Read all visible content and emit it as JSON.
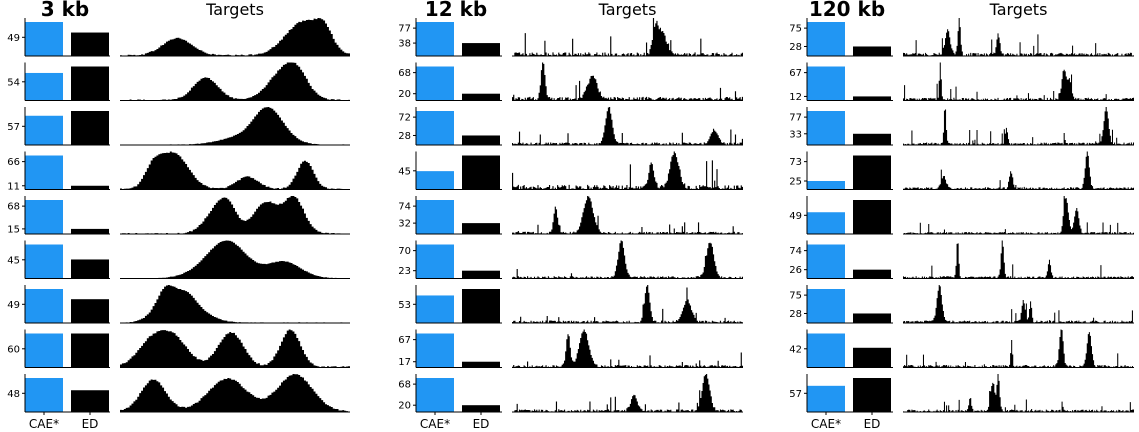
{
  "figure": {
    "colors": {
      "cae": "#2196f3",
      "ed": "#000000",
      "target": "#000000",
      "axis": "#000000"
    },
    "bar_labels": [
      "CAE*",
      "ED"
    ],
    "targets_title": "Targets"
  },
  "chart_data": [
    {
      "type": "bar",
      "title": "3 kb",
      "categories": [
        "CAE*",
        "ED"
      ],
      "targets_title": "Targets",
      "rows": [
        {
          "cae": 100,
          "ed": 69,
          "ticks": [
            49
          ]
        },
        {
          "cae": 81,
          "ed": 100,
          "ticks": [
            54
          ]
        },
        {
          "cae": 86,
          "ed": 100,
          "ticks": [
            57
          ]
        },
        {
          "cae": 100,
          "ed": 11,
          "ticks": [
            66,
            11
          ]
        },
        {
          "cae": 100,
          "ed": 15,
          "ticks": [
            68,
            15
          ]
        },
        {
          "cae": 100,
          "ed": 56,
          "ticks": [
            45
          ]
        },
        {
          "cae": 100,
          "ed": 70,
          "ticks": [
            49
          ]
        },
        {
          "cae": 100,
          "ed": 100,
          "ticks": [
            60
          ]
        },
        {
          "cae": 100,
          "ed": 64,
          "ticks": [
            48
          ]
        }
      ]
    },
    {
      "type": "bar",
      "title": "12 kb",
      "categories": [
        "CAE*",
        "ED"
      ],
      "targets_title": "Targets",
      "rows": [
        {
          "cae": 100,
          "ed": 38,
          "ticks": [
            77,
            38
          ]
        },
        {
          "cae": 100,
          "ed": 20,
          "ticks": [
            68,
            20
          ]
        },
        {
          "cae": 100,
          "ed": 28,
          "ticks": [
            72,
            28
          ]
        },
        {
          "cae": 54,
          "ed": 100,
          "ticks": [
            45
          ]
        },
        {
          "cae": 100,
          "ed": 32,
          "ticks": [
            74,
            32
          ]
        },
        {
          "cae": 100,
          "ed": 23,
          "ticks": [
            70,
            23
          ]
        },
        {
          "cae": 81,
          "ed": 100,
          "ticks": [
            53
          ]
        },
        {
          "cae": 100,
          "ed": 17,
          "ticks": [
            67,
            17
          ]
        },
        {
          "cae": 100,
          "ed": 20,
          "ticks": [
            68,
            20
          ]
        }
      ]
    },
    {
      "type": "bar",
      "title": "120 kb",
      "categories": [
        "CAE*",
        "ED"
      ],
      "targets_title": "Targets",
      "rows": [
        {
          "cae": 100,
          "ed": 28,
          "ticks": [
            75,
            28
          ]
        },
        {
          "cae": 100,
          "ed": 12,
          "ticks": [
            67,
            12
          ]
        },
        {
          "cae": 100,
          "ed": 33,
          "ticks": [
            77,
            33
          ]
        },
        {
          "cae": 25,
          "ed": 100,
          "ticks": [
            73,
            25
          ]
        },
        {
          "cae": 64,
          "ed": 100,
          "ticks": [
            49
          ]
        },
        {
          "cae": 100,
          "ed": 26,
          "ticks": [
            74,
            26
          ]
        },
        {
          "cae": 100,
          "ed": 28,
          "ticks": [
            75,
            28
          ]
        },
        {
          "cae": 100,
          "ed": 58,
          "ticks": [
            42
          ]
        },
        {
          "cae": 77,
          "ed": 100,
          "ticks": [
            57
          ]
        }
      ]
    }
  ]
}
